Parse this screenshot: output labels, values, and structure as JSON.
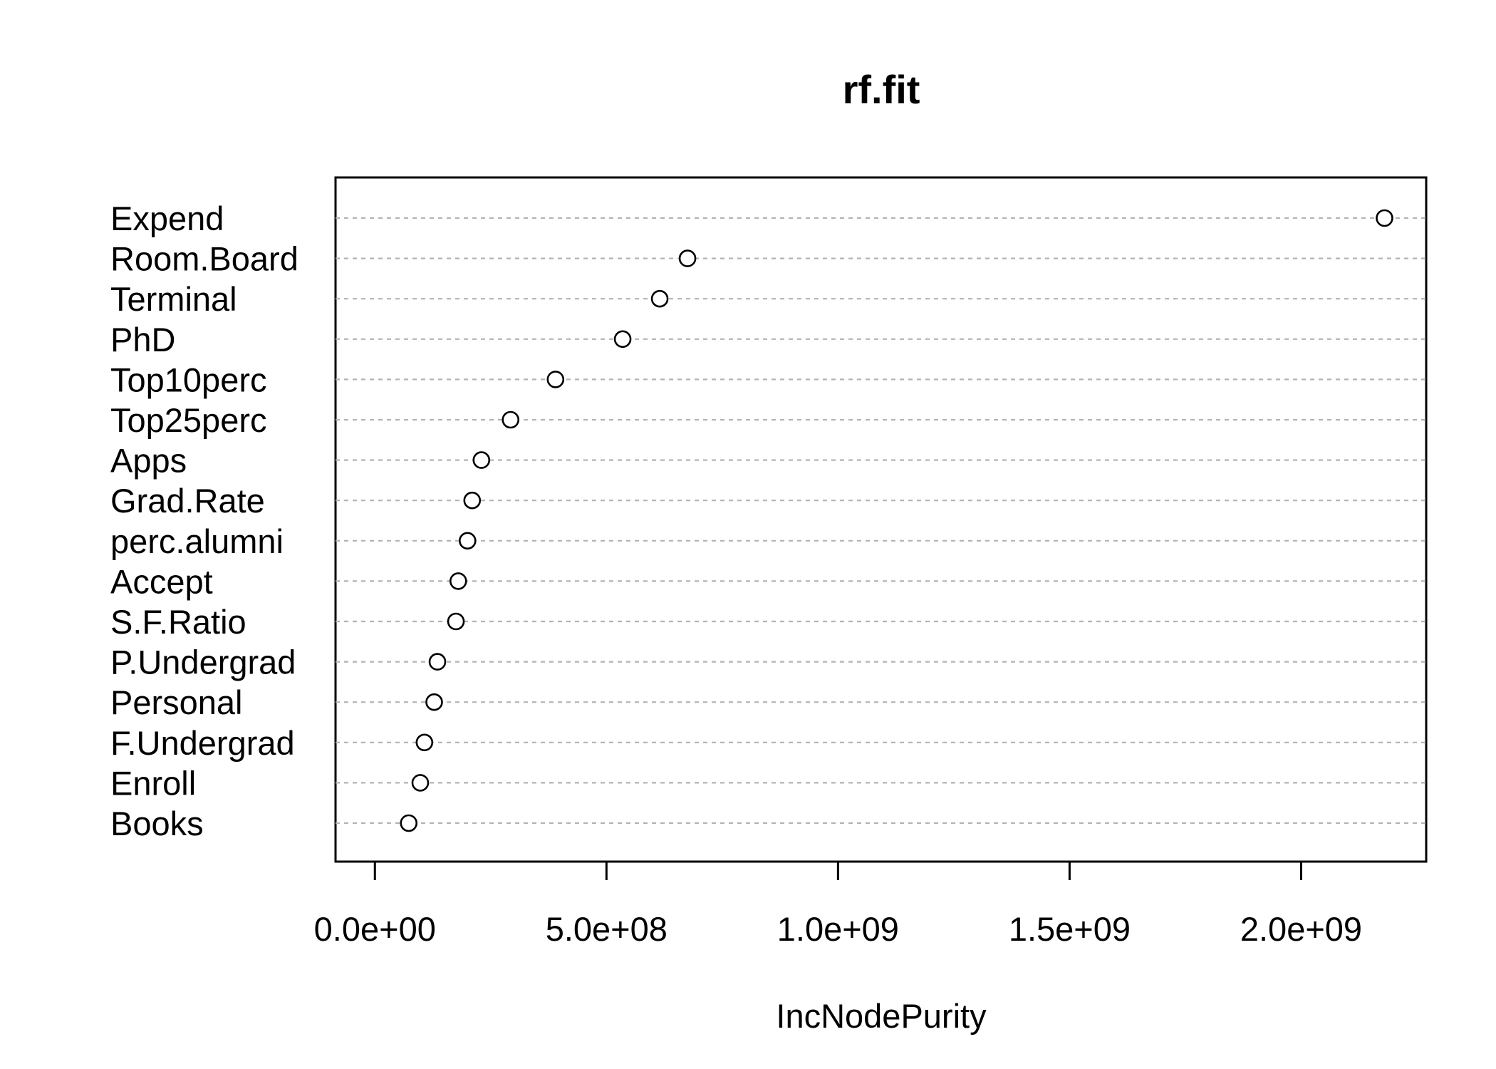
{
  "chart_data": {
    "type": "scatter",
    "title": "rf.fit",
    "xlabel": "IncNodePurity",
    "ylabel": "",
    "xlim": [
      -85000000,
      2270000000
    ],
    "x_ticks": [
      0,
      500000000,
      1000000000,
      1500000000,
      2000000000
    ],
    "x_tick_labels": [
      "0.0e+00",
      "5.0e+08",
      "1.0e+09",
      "1.5e+09",
      "2.0e+09"
    ],
    "grid": "horizontal dotted guide line per variable",
    "legend": "none",
    "marker": "open circle",
    "colors": {
      "points": "#000000",
      "guides": "#b3b3b3",
      "frame": "#000000",
      "background": "#ffffff"
    },
    "categories": [
      "Expend",
      "Room.Board",
      "Terminal",
      "PhD",
      "Top10perc",
      "Top25perc",
      "Apps",
      "Grad.Rate",
      "perc.alumni",
      "Accept",
      "S.F.Ratio",
      "P.Undergrad",
      "Personal",
      "F.Undergrad",
      "Enroll",
      "Books"
    ],
    "values": [
      2180000000,
      675000000,
      615000000,
      535000000,
      390000000,
      293000000,
      230000000,
      210000000,
      200000000,
      180000000,
      175000000,
      135000000,
      128000000,
      107000000,
      98000000,
      73000000
    ]
  }
}
